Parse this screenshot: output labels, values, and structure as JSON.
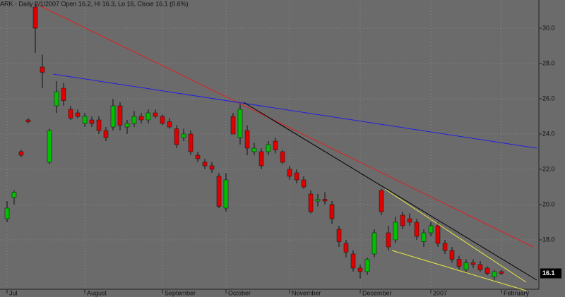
{
  "chart_data": {
    "type": "candlestick",
    "title": "ARK - Daily 2/1/2007 Open 16.2, Hi 16.3, Lo 16, Close 16.1 (0.6%)",
    "categories": [
      "Jul",
      null,
      null,
      null,
      null,
      null,
      null,
      null,
      null,
      null,
      null,
      "August",
      null,
      null,
      null,
      null,
      null,
      null,
      null,
      null,
      null,
      null,
      "September",
      null,
      null,
      null,
      null,
      null,
      null,
      null,
      null,
      "October",
      null,
      null,
      null,
      null,
      null,
      null,
      null,
      null,
      "November",
      null,
      null,
      null,
      null,
      null,
      null,
      null,
      null,
      null,
      "December",
      null,
      null,
      null,
      null,
      null,
      null,
      null,
      null,
      null,
      "2007",
      null,
      null,
      null,
      null,
      null,
      null,
      null,
      null,
      null,
      "February"
    ],
    "open": [
      19.2,
      20.4,
      23.0,
      24.8,
      31.2,
      27.8,
      22.4,
      25.6,
      26.6,
      25.4,
      25.2,
      24.6,
      24.8,
      24.8,
      24.2,
      24.4,
      25.6,
      24.4,
      24.6,
      25.0,
      24.8,
      25.2,
      25.0,
      24.7,
      24.3,
      23.8,
      24.0,
      22.8,
      22.4,
      22.2,
      21.6,
      19.8,
      25.0,
      23.8,
      24.2,
      23.0,
      23.0,
      23.0,
      23.6,
      23.0,
      22.0,
      21.8,
      21.4,
      20.6,
      20.2,
      20.3,
      20.0,
      18.6,
      17.8,
      17.2,
      16.4,
      16.2,
      17.2,
      20.8,
      18.4,
      18.0,
      19.4,
      19.2,
      19.0,
      17.9,
      18.4,
      18.8,
      17.8,
      17.4,
      16.9,
      16.3,
      16.7,
      16.6,
      16.4,
      15.9,
      16.2
    ],
    "high": [
      20.2,
      20.8,
      23.1,
      24.9,
      31.5,
      28.5,
      24.3,
      27.0,
      26.9,
      25.6,
      25.4,
      25.2,
      25.0,
      25.0,
      24.4,
      26.0,
      25.8,
      24.8,
      25.3,
      25.2,
      25.4,
      25.4,
      25.1,
      24.9,
      24.5,
      24.3,
      24.2,
      23.0,
      22.6,
      22.4,
      21.8,
      21.8,
      25.2,
      25.8,
      24.5,
      23.5,
      23.2,
      23.6,
      23.8,
      23.1,
      22.2,
      22.0,
      21.6,
      20.8,
      20.6,
      20.7,
      20.2,
      18.8,
      18.0,
      17.4,
      16.6,
      17.0,
      18.6,
      20.9,
      18.8,
      19.3,
      19.6,
      19.5,
      19.2,
      18.6,
      19.0,
      19.0,
      18.0,
      17.6,
      17.1,
      16.9,
      16.9,
      16.8,
      16.5,
      16.3,
      16.3
    ],
    "low": [
      19.0,
      20.0,
      22.7,
      24.6,
      28.6,
      26.6,
      22.3,
      25.2,
      25.6,
      24.8,
      24.9,
      24.4,
      24.4,
      24.0,
      23.6,
      24.2,
      24.2,
      24.0,
      24.4,
      24.6,
      24.6,
      24.9,
      24.5,
      24.3,
      23.2,
      23.6,
      22.8,
      22.4,
      22.0,
      21.8,
      19.8,
      19.6,
      24.0,
      23.4,
      22.8,
      22.8,
      22.0,
      22.8,
      22.9,
      22.3,
      21.4,
      21.2,
      20.9,
      19.5,
      19.9,
      20.0,
      18.9,
      17.6,
      17.0,
      16.2,
      15.8,
      16.0,
      17.0,
      19.4,
      17.4,
      17.8,
      18.6,
      18.8,
      18.0,
      17.6,
      18.2,
      17.6,
      17.2,
      16.7,
      16.3,
      16.1,
      16.4,
      16.2,
      16.0,
      15.7,
      16.0
    ],
    "close": [
      19.8,
      20.7,
      22.8,
      24.7,
      30.0,
      27.5,
      24.2,
      26.4,
      25.9,
      24.9,
      25.0,
      25.0,
      24.6,
      24.2,
      23.8,
      25.6,
      24.5,
      24.6,
      25.0,
      24.8,
      25.2,
      25.0,
      24.6,
      24.4,
      23.4,
      24.0,
      23.0,
      22.6,
      22.2,
      22.0,
      19.9,
      21.4,
      24.0,
      25.4,
      23.2,
      23.2,
      22.2,
      23.4,
      23.1,
      22.4,
      21.6,
      21.4,
      21.0,
      19.6,
      20.3,
      20.2,
      19.2,
      17.9,
      17.3,
      16.4,
      16.2,
      16.9,
      18.4,
      19.6,
      17.6,
      19.0,
      18.8,
      19.0,
      18.2,
      18.4,
      18.8,
      17.8,
      17.4,
      16.9,
      16.5,
      16.7,
      16.6,
      16.3,
      16.1,
      16.2,
      16.1
    ],
    "up_color": "#00c000",
    "down_color": "#e00000",
    "last_price": 16.1,
    "ylim": [
      15.2,
      31.6
    ],
    "yticks": [
      {
        "value": 18,
        "label": "18.0"
      },
      {
        "value": 20,
        "label": "20.0"
      },
      {
        "value": 22,
        "label": "22.0"
      },
      {
        "value": 24,
        "label": "24.0"
      },
      {
        "value": 26,
        "label": "26.0"
      },
      {
        "value": 28,
        "label": "28.0"
      },
      {
        "value": 30,
        "label": "30.0"
      }
    ],
    "grid": true
  }
}
